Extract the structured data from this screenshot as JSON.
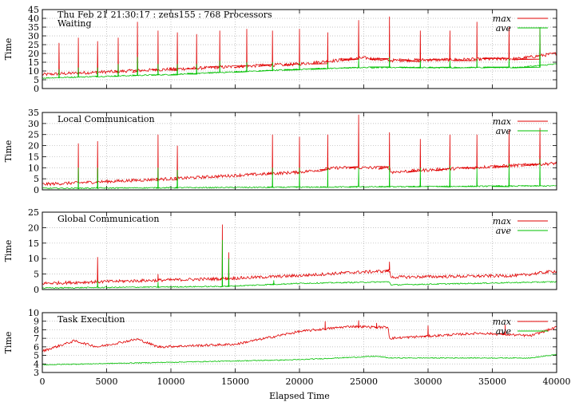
{
  "chart_data": [
    {
      "type": "line",
      "header": "Thu Feb 21 21:30:17 : zeus155 : 768 Processors",
      "title": "Waiting",
      "xlabel": "",
      "ylabel": "Time",
      "xlim": [
        0,
        40000
      ],
      "ylim": [
        0,
        45
      ],
      "yticks": [
        0,
        5,
        10,
        15,
        20,
        25,
        30,
        35,
        40,
        45
      ],
      "grid": true,
      "legend": "top-right",
      "series": [
        {
          "name": "max",
          "color": "#e00000",
          "base": [
            [
              0,
              8
            ],
            [
              10000,
              11
            ],
            [
              20000,
              14
            ],
            [
              25000,
              17.5
            ],
            [
              27000,
              16
            ],
            [
              37000,
              17
            ],
            [
              40000,
              20
            ]
          ],
          "spikes": [
            [
              1300,
              26
            ],
            [
              2800,
              29
            ],
            [
              4300,
              27
            ],
            [
              5900,
              29
            ],
            [
              7400,
              38
            ],
            [
              9000,
              33
            ],
            [
              10500,
              32
            ],
            [
              12000,
              31
            ],
            [
              13800,
              33
            ],
            [
              15900,
              34
            ],
            [
              17900,
              33
            ],
            [
              20000,
              34
            ],
            [
              22200,
              32
            ],
            [
              24600,
              39
            ],
            [
              27000,
              41
            ],
            [
              29400,
              33
            ],
            [
              31700,
              33
            ],
            [
              33800,
              38
            ],
            [
              36300,
              35
            ],
            [
              38700,
              35
            ]
          ]
        },
        {
          "name": "ave",
          "color": "#00c000",
          "base": [
            [
              0,
              6
            ],
            [
              10000,
              8
            ],
            [
              20000,
              11
            ],
            [
              25000,
              12
            ],
            [
              27000,
              12
            ],
            [
              37000,
              12
            ],
            [
              40000,
              14
            ]
          ],
          "spikes": [
            [
              1300,
              11
            ],
            [
              2800,
              12
            ],
            [
              4300,
              12
            ],
            [
              5900,
              14
            ],
            [
              7400,
              18
            ],
            [
              9000,
              14
            ],
            [
              10500,
              14
            ],
            [
              12000,
              14
            ],
            [
              13800,
              16
            ],
            [
              15900,
              15
            ],
            [
              17900,
              15
            ],
            [
              20000,
              15
            ],
            [
              22200,
              15
            ],
            [
              24600,
              17
            ],
            [
              27000,
              18
            ],
            [
              29400,
              16
            ],
            [
              31700,
              16
            ],
            [
              33800,
              17
            ],
            [
              36300,
              17
            ],
            [
              38700,
              35
            ]
          ]
        }
      ]
    },
    {
      "type": "line",
      "title": "Local Communication",
      "xlabel": "",
      "ylabel": "Time",
      "xlim": [
        0,
        40000
      ],
      "ylim": [
        0,
        35
      ],
      "yticks": [
        0,
        5,
        10,
        15,
        20,
        25,
        30,
        35
      ],
      "grid": true,
      "legend": "top-right",
      "series": [
        {
          "name": "max",
          "color": "#e00000",
          "base": [
            [
              0,
              2.5
            ],
            [
              10000,
              5
            ],
            [
              20000,
              8
            ],
            [
              23000,
              10
            ],
            [
              27000,
              10
            ],
            [
              27100,
              8
            ],
            [
              30000,
              9
            ],
            [
              40000,
              12
            ]
          ],
          "spikes": [
            [
              2800,
              21
            ],
            [
              4300,
              22
            ],
            [
              9000,
              25
            ],
            [
              10500,
              20
            ],
            [
              17900,
              25
            ],
            [
              20000,
              24
            ],
            [
              22200,
              25
            ],
            [
              24600,
              34
            ],
            [
              27000,
              26
            ],
            [
              29400,
              23
            ],
            [
              31700,
              25
            ],
            [
              33800,
              25
            ],
            [
              36300,
              27
            ],
            [
              38700,
              28
            ]
          ]
        },
        {
          "name": "ave",
          "color": "#00c000",
          "base": [
            [
              0,
              0.7
            ],
            [
              20000,
              1.2
            ],
            [
              40000,
              1.8
            ]
          ],
          "spikes": [
            [
              2800,
              10
            ],
            [
              4300,
              10
            ],
            [
              9000,
              10
            ],
            [
              10500,
              9
            ],
            [
              17900,
              10
            ],
            [
              20000,
              10
            ],
            [
              22200,
              10
            ],
            [
              24600,
              10
            ],
            [
              27000,
              11
            ],
            [
              29400,
              10
            ],
            [
              31700,
              11
            ],
            [
              33800,
              10
            ],
            [
              36300,
              12
            ],
            [
              38700,
              14
            ]
          ]
        }
      ]
    },
    {
      "type": "line",
      "title": "Global Communication",
      "xlabel": "",
      "ylabel": "Time",
      "xlim": [
        0,
        40000
      ],
      "ylim": [
        0,
        25
      ],
      "yticks": [
        0,
        5,
        10,
        15,
        20,
        25
      ],
      "grid": true,
      "legend": "top-right",
      "series": [
        {
          "name": "max",
          "color": "#e00000",
          "base": [
            [
              0,
              2
            ],
            [
              4300,
              2.5
            ],
            [
              9000,
              3
            ],
            [
              14000,
              3.5
            ],
            [
              20000,
              4.5
            ],
            [
              24000,
              5.5
            ],
            [
              27000,
              6
            ],
            [
              27100,
              4
            ],
            [
              37000,
              4.5
            ],
            [
              40000,
              6
            ]
          ],
          "spikes": [
            [
              4300,
              10.5
            ],
            [
              9000,
              5
            ],
            [
              14000,
              21
            ],
            [
              14500,
              12
            ],
            [
              27000,
              9
            ]
          ]
        },
        {
          "name": "ave",
          "color": "#00c000",
          "base": [
            [
              0,
              0.5
            ],
            [
              14000,
              1
            ],
            [
              20000,
              2
            ],
            [
              27000,
              2.5
            ],
            [
              27100,
              1.5
            ],
            [
              40000,
              2.5
            ]
          ],
          "spikes": [
            [
              4300,
              3
            ],
            [
              9000,
              2.5
            ],
            [
              14000,
              16
            ],
            [
              14500,
              10
            ],
            [
              18000,
              3
            ]
          ]
        }
      ]
    },
    {
      "type": "line",
      "title": "Task Execution",
      "xlabel": "Elapsed Time",
      "ylabel": "Time",
      "xlim": [
        0,
        40000
      ],
      "ylim": [
        3,
        10
      ],
      "yticks": [
        3,
        4,
        5,
        6,
        7,
        8,
        9,
        10
      ],
      "xticks": [
        0,
        5000,
        10000,
        15000,
        20000,
        25000,
        30000,
        35000,
        40000
      ],
      "grid": true,
      "legend": "top-right",
      "series": [
        {
          "name": "max",
          "color": "#e00000",
          "base": [
            [
              0,
              5.5
            ],
            [
              2500,
              6.7
            ],
            [
              4300,
              6
            ],
            [
              7400,
              6.9
            ],
            [
              9000,
              6
            ],
            [
              15000,
              6.3
            ],
            [
              20000,
              7.8
            ],
            [
              24000,
              8.4
            ],
            [
              26000,
              8.3
            ],
            [
              26900,
              8.3
            ],
            [
              27000,
              7
            ],
            [
              34000,
              7.6
            ],
            [
              38000,
              7.3
            ],
            [
              40000,
              8.3
            ]
          ],
          "spikes": [
            [
              22000,
              9
            ],
            [
              24600,
              9.1
            ],
            [
              26000,
              8.8
            ],
            [
              30000,
              8.5
            ],
            [
              36000,
              8.6
            ]
          ]
        },
        {
          "name": "ave",
          "color": "#00c000",
          "base": [
            [
              0,
              3.9
            ],
            [
              10000,
              4.2
            ],
            [
              20000,
              4.5
            ],
            [
              26000,
              4.9
            ],
            [
              27000,
              4.7
            ],
            [
              38000,
              4.7
            ],
            [
              40000,
              5.1
            ]
          ],
          "spikes": []
        }
      ]
    }
  ]
}
